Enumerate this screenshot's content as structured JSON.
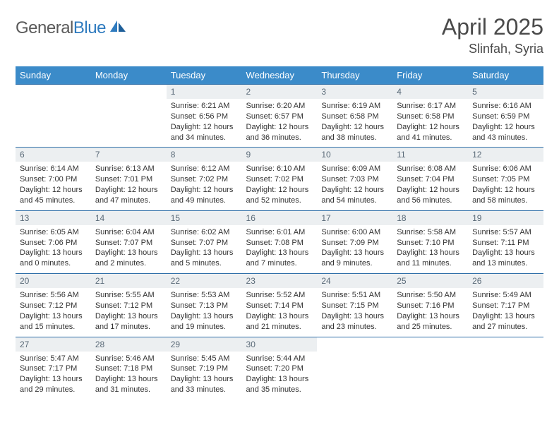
{
  "brand": {
    "part1": "General",
    "part2": "Blue"
  },
  "title": "April 2025",
  "location": "Slinfah, Syria",
  "header_bg": "#3b8bc9",
  "daynum_bg": "#eceff1",
  "rule_color": "#2f6fa8",
  "days": [
    "Sunday",
    "Monday",
    "Tuesday",
    "Wednesday",
    "Thursday",
    "Friday",
    "Saturday"
  ],
  "weeks": [
    [
      null,
      null,
      {
        "n": "1",
        "sr": "6:21 AM",
        "ss": "6:56 PM",
        "dl": "12 hours and 34 minutes."
      },
      {
        "n": "2",
        "sr": "6:20 AM",
        "ss": "6:57 PM",
        "dl": "12 hours and 36 minutes."
      },
      {
        "n": "3",
        "sr": "6:19 AM",
        "ss": "6:58 PM",
        "dl": "12 hours and 38 minutes."
      },
      {
        "n": "4",
        "sr": "6:17 AM",
        "ss": "6:58 PM",
        "dl": "12 hours and 41 minutes."
      },
      {
        "n": "5",
        "sr": "6:16 AM",
        "ss": "6:59 PM",
        "dl": "12 hours and 43 minutes."
      }
    ],
    [
      {
        "n": "6",
        "sr": "6:14 AM",
        "ss": "7:00 PM",
        "dl": "12 hours and 45 minutes."
      },
      {
        "n": "7",
        "sr": "6:13 AM",
        "ss": "7:01 PM",
        "dl": "12 hours and 47 minutes."
      },
      {
        "n": "8",
        "sr": "6:12 AM",
        "ss": "7:02 PM",
        "dl": "12 hours and 49 minutes."
      },
      {
        "n": "9",
        "sr": "6:10 AM",
        "ss": "7:02 PM",
        "dl": "12 hours and 52 minutes."
      },
      {
        "n": "10",
        "sr": "6:09 AM",
        "ss": "7:03 PM",
        "dl": "12 hours and 54 minutes."
      },
      {
        "n": "11",
        "sr": "6:08 AM",
        "ss": "7:04 PM",
        "dl": "12 hours and 56 minutes."
      },
      {
        "n": "12",
        "sr": "6:06 AM",
        "ss": "7:05 PM",
        "dl": "12 hours and 58 minutes."
      }
    ],
    [
      {
        "n": "13",
        "sr": "6:05 AM",
        "ss": "7:06 PM",
        "dl": "13 hours and 0 minutes."
      },
      {
        "n": "14",
        "sr": "6:04 AM",
        "ss": "7:07 PM",
        "dl": "13 hours and 2 minutes."
      },
      {
        "n": "15",
        "sr": "6:02 AM",
        "ss": "7:07 PM",
        "dl": "13 hours and 5 minutes."
      },
      {
        "n": "16",
        "sr": "6:01 AM",
        "ss": "7:08 PM",
        "dl": "13 hours and 7 minutes."
      },
      {
        "n": "17",
        "sr": "6:00 AM",
        "ss": "7:09 PM",
        "dl": "13 hours and 9 minutes."
      },
      {
        "n": "18",
        "sr": "5:58 AM",
        "ss": "7:10 PM",
        "dl": "13 hours and 11 minutes."
      },
      {
        "n": "19",
        "sr": "5:57 AM",
        "ss": "7:11 PM",
        "dl": "13 hours and 13 minutes."
      }
    ],
    [
      {
        "n": "20",
        "sr": "5:56 AM",
        "ss": "7:12 PM",
        "dl": "13 hours and 15 minutes."
      },
      {
        "n": "21",
        "sr": "5:55 AM",
        "ss": "7:12 PM",
        "dl": "13 hours and 17 minutes."
      },
      {
        "n": "22",
        "sr": "5:53 AM",
        "ss": "7:13 PM",
        "dl": "13 hours and 19 minutes."
      },
      {
        "n": "23",
        "sr": "5:52 AM",
        "ss": "7:14 PM",
        "dl": "13 hours and 21 minutes."
      },
      {
        "n": "24",
        "sr": "5:51 AM",
        "ss": "7:15 PM",
        "dl": "13 hours and 23 minutes."
      },
      {
        "n": "25",
        "sr": "5:50 AM",
        "ss": "7:16 PM",
        "dl": "13 hours and 25 minutes."
      },
      {
        "n": "26",
        "sr": "5:49 AM",
        "ss": "7:17 PM",
        "dl": "13 hours and 27 minutes."
      }
    ],
    [
      {
        "n": "27",
        "sr": "5:47 AM",
        "ss": "7:17 PM",
        "dl": "13 hours and 29 minutes."
      },
      {
        "n": "28",
        "sr": "5:46 AM",
        "ss": "7:18 PM",
        "dl": "13 hours and 31 minutes."
      },
      {
        "n": "29",
        "sr": "5:45 AM",
        "ss": "7:19 PM",
        "dl": "13 hours and 33 minutes."
      },
      {
        "n": "30",
        "sr": "5:44 AM",
        "ss": "7:20 PM",
        "dl": "13 hours and 35 minutes."
      },
      null,
      null,
      null
    ]
  ],
  "labels": {
    "sunrise": "Sunrise:",
    "sunset": "Sunset:",
    "daylight": "Daylight:"
  }
}
